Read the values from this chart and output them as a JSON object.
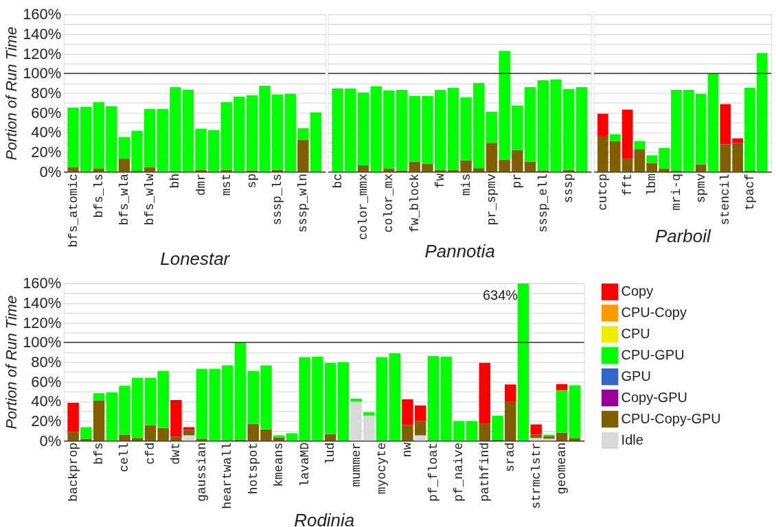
{
  "chart_data": [
    {
      "type": "bar",
      "stacked": true,
      "ylabel": "Portion of Run Time",
      "xlabel": "Lonestar",
      "grid": "y",
      "ylim": [
        0,
        160
      ],
      "yticks": [
        {
          "value": 0,
          "label": "0%"
        },
        {
          "value": 10,
          "label": null
        },
        {
          "value": 20,
          "label": "20%"
        },
        {
          "value": 30,
          "label": null
        },
        {
          "value": 40,
          "label": "40%"
        },
        {
          "value": 50,
          "label": null
        },
        {
          "value": 60,
          "label": "60%"
        },
        {
          "value": 70,
          "label": null
        },
        {
          "value": 80,
          "label": "80%"
        },
        {
          "value": 90,
          "label": null
        },
        {
          "value": 100,
          "label": "100%"
        },
        {
          "value": 110,
          "label": null
        },
        {
          "value": 120,
          "label": "120%"
        },
        {
          "value": 130,
          "label": null
        },
        {
          "value": 140,
          "label": "140%"
        },
        {
          "value": 150,
          "label": null
        },
        {
          "value": 160,
          "label": "160%"
        }
      ],
      "ref_lines": [
        {
          "axis": "y",
          "value": 100,
          "color": "#333333"
        }
      ],
      "categories": [
        "bfs_atomic",
        null,
        "bfs_ls",
        null,
        "bfs_wla",
        null,
        "bfs_wlw",
        null,
        "bh",
        null,
        "dmr",
        null,
        "mst",
        null,
        "sp",
        null,
        "sssp_ls",
        null,
        "sssp_wln",
        null
      ],
      "series": [
        {
          "color": "#7f5f00",
          "values": [
            4.4,
            0,
            3.5,
            0,
            13.4,
            1,
            4.4,
            0,
            0,
            0,
            2,
            0,
            2,
            0,
            1.4,
            0,
            2,
            0,
            32.6,
            0
          ]
        },
        {
          "color": "#00ff00",
          "values": [
            60.9,
            66,
            67.3,
            66.7,
            22,
            40.7,
            59.5,
            63.9,
            86.1,
            83.5,
            41.8,
            42.4,
            68.8,
            76.4,
            76.4,
            87.5,
            76.5,
            79.2,
            11.8,
            60.4
          ]
        }
      ]
    },
    {
      "type": "bar",
      "stacked": true,
      "xlabel": "Pannotia",
      "grid": "y",
      "tick_labels": "x",
      "ylim": [
        0,
        160
      ],
      "yticks": [
        {
          "value": 0,
          "label": null
        },
        {
          "value": 10,
          "label": null
        },
        {
          "value": 20,
          "label": null
        },
        {
          "value": 30,
          "label": null
        },
        {
          "value": 40,
          "label": null
        },
        {
          "value": 50,
          "label": null
        },
        {
          "value": 60,
          "label": null
        },
        {
          "value": 70,
          "label": null
        },
        {
          "value": 80,
          "label": null
        },
        {
          "value": 90,
          "label": null
        },
        {
          "value": 100,
          "label": null
        },
        {
          "value": 110,
          "label": null
        },
        {
          "value": 120,
          "label": null
        },
        {
          "value": 130,
          "label": null
        },
        {
          "value": 140,
          "label": null
        },
        {
          "value": 150,
          "label": null
        },
        {
          "value": 160,
          "label": null
        }
      ],
      "ref_lines": [
        {
          "axis": "y",
          "value": 100,
          "color": "#333333"
        }
      ],
      "categories": [
        "bc",
        null,
        "color_mmx",
        null,
        "color_mx",
        null,
        "fw_block",
        null,
        "fw",
        null,
        "mis",
        null,
        "pr_spmv",
        null,
        "pr",
        null,
        "sssp_ell",
        null,
        "sssp",
        null
      ],
      "series": [
        {
          "color": "#7f5f00",
          "values": [
            0,
            0,
            6.5,
            0,
            3,
            1.4,
            10.4,
            8.3,
            2,
            2,
            11.8,
            3.7,
            29.4,
            12.5,
            22.2,
            10.4,
            1.4,
            0,
            2,
            0
          ]
        },
        {
          "color": "#00ff00",
          "values": [
            84.9,
            84.7,
            74.1,
            86.8,
            79.6,
            81.9,
            66.7,
            68.8,
            81.3,
            83.4,
            63.9,
            86.6,
            31.7,
            110.4,
            45.2,
            75.7,
            91.7,
            93.8,
            82,
            86.1
          ]
        }
      ]
    },
    {
      "type": "bar",
      "stacked": true,
      "xlabel": "Parboil",
      "grid": "y",
      "tick_labels": "x",
      "ylim": [
        0,
        160
      ],
      "yticks": [
        {
          "value": 0,
          "label": null
        },
        {
          "value": 10,
          "label": null
        },
        {
          "value": 20,
          "label": null
        },
        {
          "value": 30,
          "label": null
        },
        {
          "value": 40,
          "label": null
        },
        {
          "value": 50,
          "label": null
        },
        {
          "value": 60,
          "label": null
        },
        {
          "value": 70,
          "label": null
        },
        {
          "value": 80,
          "label": null
        },
        {
          "value": 90,
          "label": null
        },
        {
          "value": 100,
          "label": null
        },
        {
          "value": 110,
          "label": null
        },
        {
          "value": 120,
          "label": null
        },
        {
          "value": 130,
          "label": null
        },
        {
          "value": 140,
          "label": null
        },
        {
          "value": 150,
          "label": null
        },
        {
          "value": 160,
          "label": null
        }
      ],
      "ref_lines": [
        {
          "axis": "y",
          "value": 100,
          "color": "#333333"
        }
      ],
      "categories": [
        "cutcp",
        null,
        "fft",
        null,
        "lbm",
        null,
        "mri-q",
        null,
        "spmv",
        null,
        "stencil",
        null,
        "tpacf",
        null
      ],
      "series": [
        {
          "color": "#7f5f00",
          "values": [
            35.9,
            31.3,
            13.4,
            23.1,
            9,
            3,
            1,
            0,
            7.6,
            0,
            27.8,
            29.2,
            1,
            0
          ]
        },
        {
          "color": "#00ff00",
          "values": [
            0,
            6.9,
            0,
            8.2,
            7.7,
            21.3,
            82.3,
            83.3,
            71.6,
            100,
            0,
            0,
            84.4,
            120.8
          ]
        },
        {
          "color": "#ff0000",
          "values": [
            23.1,
            0,
            49.8,
            0,
            0,
            0,
            0,
            0,
            0,
            0,
            41,
            4.8,
            0,
            0
          ]
        }
      ]
    },
    {
      "type": "bar",
      "stacked": true,
      "ylabel": "Portion of Run Time",
      "xlabel": "Rodinia",
      "grid": "y",
      "legend": "right",
      "ylim": [
        0,
        160
      ],
      "yticks": [
        {
          "value": 0,
          "label": "0%"
        },
        {
          "value": 10,
          "label": null
        },
        {
          "value": 20,
          "label": "20%"
        },
        {
          "value": 30,
          "label": null
        },
        {
          "value": 40,
          "label": "40%"
        },
        {
          "value": 50,
          "label": null
        },
        {
          "value": 60,
          "label": "60%"
        },
        {
          "value": 70,
          "label": null
        },
        {
          "value": 80,
          "label": "80%"
        },
        {
          "value": 90,
          "label": null
        },
        {
          "value": 100,
          "label": "100%"
        },
        {
          "value": 110,
          "label": null
        },
        {
          "value": 120,
          "label": "120%"
        },
        {
          "value": 130,
          "label": null
        },
        {
          "value": 140,
          "label": "140%"
        },
        {
          "value": 150,
          "label": null
        },
        {
          "value": 160,
          "label": "160%"
        }
      ],
      "ref_lines": [
        {
          "axis": "y",
          "value": 100,
          "color": "#333333"
        }
      ],
      "annotations": [
        "634%"
      ],
      "categories": [
        "backprop",
        null,
        "bfs",
        null,
        "cell",
        null,
        "cfd",
        null,
        "dwt",
        null,
        "gaussian",
        null,
        "heartwall",
        null,
        "hotspot",
        null,
        "kmeans",
        null,
        "lavaMD",
        null,
        "lud",
        null,
        "mummer",
        null,
        "myocyte",
        null,
        "nw",
        null,
        "pf_float",
        null,
        "pf_naive",
        null,
        "pathfind",
        null,
        "srad",
        null,
        "strmclstr",
        null,
        "geomean",
        null
      ],
      "series": [
        {
          "name": "Idle",
          "color": "#d9d9d9",
          "values": [
            0,
            0,
            0,
            0,
            0,
            0,
            0,
            0,
            0,
            5.5,
            0,
            0,
            0,
            0,
            0,
            0,
            0,
            0,
            0,
            0,
            0,
            0,
            40,
            25.5,
            0,
            0,
            0,
            5.5,
            0,
            0,
            0,
            0,
            0,
            0,
            0,
            0,
            2.8,
            2.1,
            0,
            0
          ]
        },
        {
          "name": "CPU-Copy-GPU",
          "color": "#7f5f00",
          "values": [
            9,
            2.1,
            40.7,
            0,
            6.2,
            2.8,
            15.9,
            13.1,
            4.1,
            5.5,
            2.1,
            0,
            0.7,
            1.1,
            17.2,
            11.7,
            3.4,
            0,
            0,
            0,
            6.9,
            0,
            0,
            0,
            0,
            0,
            15.9,
            14.5,
            0,
            0,
            0,
            0,
            17.2,
            1,
            40,
            0,
            3.4,
            2.7,
            8.3,
            2.8
          ]
        },
        {
          "name": "Copy-GPU",
          "color": "#990099",
          "values": [
            0,
            0,
            0,
            0,
            0,
            0,
            0,
            0,
            0,
            0,
            0,
            0,
            0,
            0,
            0,
            0,
            0,
            0,
            0,
            0,
            0,
            0,
            0,
            0,
            0,
            0,
            0,
            0,
            0,
            0,
            0,
            0,
            0,
            0,
            0,
            0,
            0,
            0,
            0,
            0
          ]
        },
        {
          "name": "GPU",
          "color": "#3366cc",
          "values": [
            0,
            0,
            0,
            0,
            0,
            0,
            0,
            0,
            0,
            0,
            0,
            0,
            0,
            0,
            0,
            0,
            0,
            0,
            0,
            0,
            0,
            0,
            0,
            0,
            0,
            0,
            0,
            0,
            0,
            0,
            0,
            0,
            0,
            0,
            0,
            0,
            0,
            0,
            0,
            0
          ]
        },
        {
          "name": "CPU-GPU",
          "color": "#00ff00",
          "values": [
            0,
            11.7,
            7.6,
            49,
            49.7,
            61.3,
            48.2,
            57.9,
            0,
            0,
            71,
            73.1,
            75.9,
            98.9,
            53.8,
            64.9,
            2.1,
            7.6,
            85,
            85.5,
            72.4,
            80,
            2.8,
            3.5,
            85,
            89,
            0,
            0,
            86.2,
            85.5,
            20,
            20,
            0,
            24.5,
            0,
            160,
            0,
            1.4,
            43.1,
            53.5
          ]
        },
        {
          "name": "CPU",
          "color": "#eeee00",
          "values": [
            0,
            0,
            0,
            0,
            0,
            0,
            0,
            0,
            0,
            0,
            0,
            0,
            0,
            0,
            0,
            0,
            0,
            0,
            0,
            0,
            0,
            0,
            0,
            0,
            0,
            0,
            0,
            0,
            0,
            0,
            0,
            0,
            0,
            0,
            0,
            0,
            0,
            0,
            0,
            0
          ]
        },
        {
          "name": "CPU-Copy",
          "color": "#ff9900",
          "values": [
            0,
            0,
            0,
            0,
            0,
            0,
            0,
            0,
            0,
            0,
            0,
            0,
            0,
            0,
            0,
            0,
            0,
            0,
            0,
            0,
            0,
            0,
            0,
            0,
            0,
            0,
            0,
            0,
            0,
            0,
            0,
            0,
            0,
            0,
            0,
            0,
            0,
            0,
            0,
            0
          ]
        },
        {
          "name": "Copy",
          "color": "#ff0000",
          "values": [
            29.6,
            0,
            0,
            0,
            0,
            0,
            0,
            0,
            37.3,
            2.8,
            0,
            0,
            0,
            0,
            0,
            0,
            0,
            0,
            0,
            0,
            0,
            0,
            0,
            0,
            0,
            0,
            26.2,
            15.9,
            0,
            0,
            0,
            0,
            62.1,
            0,
            17.2,
            0,
            10.4,
            0,
            6.2,
            0
          ]
        }
      ]
    }
  ]
}
